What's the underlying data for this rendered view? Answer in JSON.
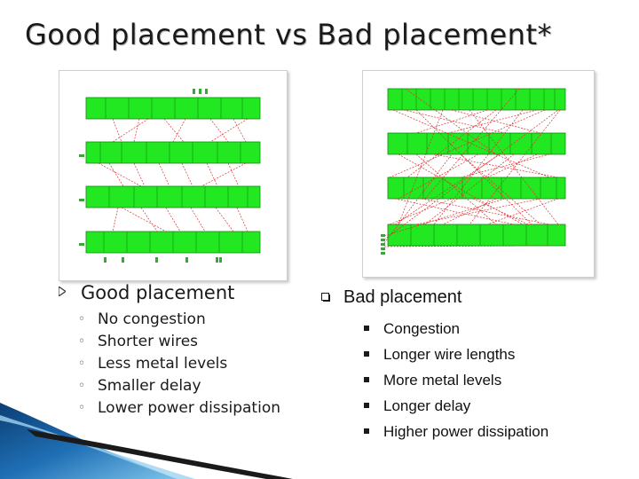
{
  "title": "Good placement vs Bad placement*",
  "good": {
    "heading": "Good placement",
    "items": [
      "No congestion",
      "Shorter wires",
      "Less metal levels",
      "Smaller delay",
      "Lower power dissipation"
    ]
  },
  "bad": {
    "heading": "Bad placement",
    "items": [
      "Congestion",
      "Longer wire lengths",
      "More metal levels",
      "Longer delay",
      "Higher power dissipation"
    ]
  },
  "colors": {
    "cell_row": "#22e822",
    "wire": "#e03030",
    "accent_blue": "#1f6fb5"
  }
}
